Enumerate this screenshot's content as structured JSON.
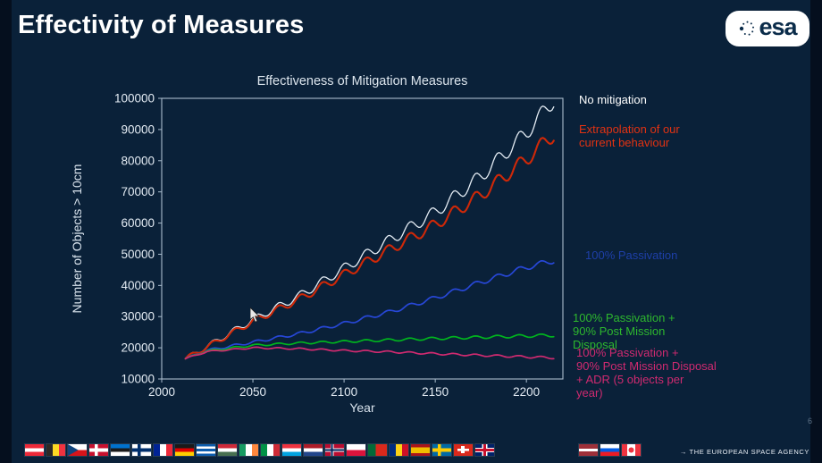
{
  "slide": {
    "title": "Effectivity of Measures",
    "slide_number": "6",
    "footer": "→ THE EUROPEAN SPACE AGENCY",
    "logo_text": "esa",
    "background_color": "#0a2139"
  },
  "chart_data": {
    "type": "line",
    "title": "Effectiveness of Mitigation Measures",
    "xlabel": "Year",
    "ylabel": "Number of Objects > 10cm",
    "xlim": [
      2000,
      2220
    ],
    "ylim": [
      10000,
      100000
    ],
    "xticks": [
      2000,
      2050,
      2100,
      2150,
      2200
    ],
    "yticks": [
      10000,
      20000,
      30000,
      40000,
      50000,
      60000,
      70000,
      80000,
      90000,
      100000
    ],
    "grid": false,
    "legend_position": "right",
    "solar_cycle_period_years": 12,
    "series": [
      {
        "name": "No mitigation",
        "label": "No mitigation",
        "color": "#e4ecf4",
        "label_color": "#ffffff",
        "width": 1.3,
        "wiggle": [
          700,
          2600
        ],
        "points": [
          [
            2013,
            16500
          ],
          [
            2025,
            20500
          ],
          [
            2050,
            29000
          ],
          [
            2075,
            36500
          ],
          [
            2100,
            45500
          ],
          [
            2125,
            54500
          ],
          [
            2150,
            63500
          ],
          [
            2175,
            75000
          ],
          [
            2200,
            89000
          ],
          [
            2215,
            99500
          ]
        ]
      },
      {
        "name": "Extrapolation of our current behaviour",
        "label": "Extrapolation of our\ncurrent behaviour",
        "color": "#cf2808",
        "label_color": "#e23212",
        "width": 2.1,
        "wiggle": [
          700,
          2400
        ],
        "points": [
          [
            2013,
            16500
          ],
          [
            2025,
            20300
          ],
          [
            2050,
            28500
          ],
          [
            2075,
            35500
          ],
          [
            2100,
            43500
          ],
          [
            2125,
            51500
          ],
          [
            2150,
            59500
          ],
          [
            2175,
            69000
          ],
          [
            2200,
            80500
          ],
          [
            2215,
            88500
          ]
        ]
      },
      {
        "name": "100% Passivation",
        "label": "100% Passivation",
        "color": "#2747d6",
        "label_color": "#1e3fa8",
        "width": 1.7,
        "wiggle": [
          300,
          900
        ],
        "points": [
          [
            2013,
            16500
          ],
          [
            2025,
            19200
          ],
          [
            2050,
            21800
          ],
          [
            2075,
            24500
          ],
          [
            2100,
            27800
          ],
          [
            2125,
            31500
          ],
          [
            2150,
            36000
          ],
          [
            2175,
            41000
          ],
          [
            2200,
            45800
          ],
          [
            2215,
            48000
          ]
        ]
      },
      {
        "name": "100% Passivation + 90% Post Mission Disposal",
        "label": "100% Passivation +\n90% Post Mission\nDisposal",
        "color": "#00b41e",
        "label_color": "#2eb82e",
        "width": 1.7,
        "wiggle": [
          250,
          500
        ],
        "points": [
          [
            2013,
            16500
          ],
          [
            2025,
            19000
          ],
          [
            2050,
            20800
          ],
          [
            2075,
            21500
          ],
          [
            2100,
            22000
          ],
          [
            2125,
            22500
          ],
          [
            2150,
            23000
          ],
          [
            2175,
            23400
          ],
          [
            2200,
            23800
          ],
          [
            2215,
            24000
          ]
        ]
      },
      {
        "name": "100% Passivation + 90% Post Mission Disposal + ADR (5 objects per year)",
        "label": "100% Passivation +\n90% Post Mission Disposal\n+ ADR (5 objects per\nyear)",
        "color": "#d02a70",
        "label_color": "#d02a70",
        "width": 1.7,
        "wiggle": [
          200,
          350
        ],
        "points": [
          [
            2013,
            16500
          ],
          [
            2025,
            18800
          ],
          [
            2050,
            20000
          ],
          [
            2075,
            19700
          ],
          [
            2100,
            19100
          ],
          [
            2125,
            18700
          ],
          [
            2150,
            18100
          ],
          [
            2175,
            17600
          ],
          [
            2200,
            17100
          ],
          [
            2215,
            16800
          ]
        ]
      }
    ]
  },
  "flags": {
    "members": [
      "austria",
      "belgium",
      "czechia",
      "denmark",
      "estonia",
      "finland",
      "france",
      "germany",
      "greece",
      "hungary",
      "ireland",
      "italy",
      "luxembourg",
      "netherlands",
      "norway",
      "poland",
      "portugal",
      "romania",
      "spain",
      "sweden",
      "switzerland",
      "united-kingdom"
    ],
    "associates": [
      "latvia",
      "slovenia",
      "canada"
    ]
  }
}
